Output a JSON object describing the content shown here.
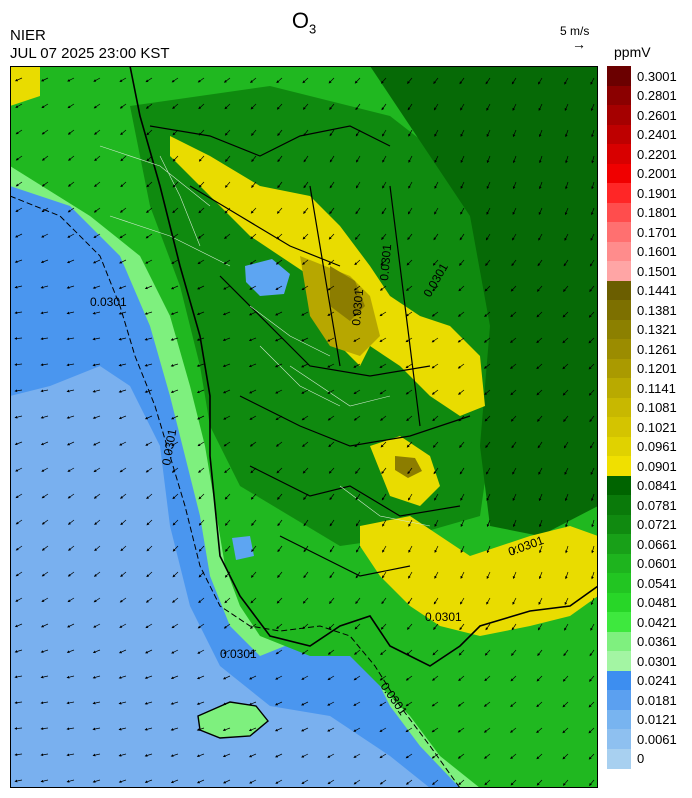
{
  "header": {
    "title_main": "O",
    "title_sub": "3",
    "agency": "NIER",
    "datetime": "JUL 07 2025 23:00 KST",
    "vector_scale_label": "5 m/s",
    "vector_scale_arrow": "→",
    "unit": "ppmV"
  },
  "legend": {
    "ticks": [
      "0.3001",
      "0.2801",
      "0.2601",
      "0.2401",
      "0.2201",
      "0.2001",
      "0.1901",
      "0.1801",
      "0.1701",
      "0.1601",
      "0.1501",
      "0.1441",
      "0.1381",
      "0.1321",
      "0.1261",
      "0.1201",
      "0.1141",
      "0.1081",
      "0.1021",
      "0.0961",
      "0.0901",
      "0.0841",
      "0.0781",
      "0.0721",
      "0.0661",
      "0.0601",
      "0.0541",
      "0.0481",
      "0.0421",
      "0.0361",
      "0.0301",
      "0.0241",
      "0.0181",
      "0.0121",
      "0.0061",
      "0"
    ],
    "colors": [
      "#6b0000",
      "#8b0000",
      "#a50000",
      "#be0000",
      "#d80000",
      "#f00000",
      "#ff2626",
      "#ff4d4d",
      "#ff7070",
      "#ff8c8c",
      "#ffa5a5",
      "#6b5e00",
      "#7d7000",
      "#8c8000",
      "#9b8c00",
      "#aa9a00",
      "#b9aa00",
      "#c8b800",
      "#d4c400",
      "#e0d200",
      "#f0e000",
      "#006400",
      "#0a7a0a",
      "#108a10",
      "#18a018",
      "#1eb41e",
      "#22c522",
      "#28d628",
      "#3ee83e",
      "#7ff07f",
      "#a3f5a3",
      "#3d8ef0",
      "#5ba0f0",
      "#78b4f0",
      "#8ec0f0",
      "#a8d0f0"
    ]
  },
  "map": {
    "contour_label": "0.0301",
    "colors": {
      "sea_low": "#4a96ef",
      "sea_lighter": "#79b0ef",
      "coast_band": "#7ef07e",
      "land_mid": "#20b820",
      "land_dark": "#0f8a0f",
      "land_darkest": "#066a06",
      "ozone_high": "#e9dc00",
      "ozone_higher": "#b7a700",
      "ozone_peak": "#8c7d00",
      "pocket_blue": "#5da5f2"
    }
  }
}
